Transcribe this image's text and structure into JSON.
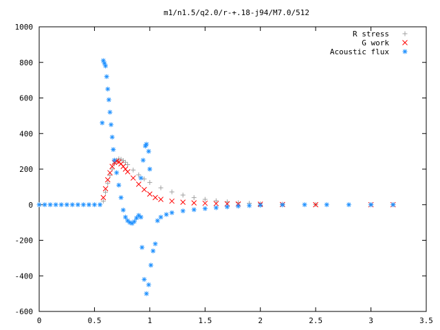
{
  "chart_data": {
    "type": "scatter",
    "title": "m1/n1.5/q2.0/r-+.18-j94/M7.0/512",
    "xlabel": "",
    "ylabel": "",
    "xlim": [
      0,
      3.5
    ],
    "ylim": [
      -600,
      1000
    ],
    "x_ticks": [
      "0",
      "0.5",
      "1",
      "1.5",
      "2",
      "2.5",
      "3",
      "3.5"
    ],
    "y_ticks": [
      "-600",
      "-400",
      "-200",
      "0",
      "200",
      "400",
      "600",
      "800",
      "1000"
    ],
    "grid": false,
    "legend_position": "top-right",
    "series": [
      {
        "name": "R stress",
        "marker": "+",
        "color": "#a0a0a0",
        "points": [
          [
            0.58,
            20
          ],
          [
            0.6,
            70
          ],
          [
            0.62,
            120
          ],
          [
            0.64,
            165
          ],
          [
            0.66,
            200
          ],
          [
            0.68,
            230
          ],
          [
            0.7,
            250
          ],
          [
            0.72,
            258
          ],
          [
            0.74,
            255
          ],
          [
            0.76,
            248
          ],
          [
            0.78,
            238
          ],
          [
            0.8,
            225
          ],
          [
            0.85,
            195
          ],
          [
            0.9,
            168
          ],
          [
            0.95,
            145
          ],
          [
            1.0,
            125
          ],
          [
            1.1,
            95
          ],
          [
            1.2,
            72
          ],
          [
            1.3,
            54
          ],
          [
            1.4,
            40
          ],
          [
            1.5,
            30
          ],
          [
            1.6,
            22
          ],
          [
            1.7,
            16
          ],
          [
            1.8,
            11
          ],
          [
            1.9,
            8
          ],
          [
            2.0,
            5
          ],
          [
            2.2,
            3
          ],
          [
            2.5,
            1
          ],
          [
            3.0,
            0
          ],
          [
            3.2,
            0
          ]
        ]
      },
      {
        "name": "G work",
        "marker": "x",
        "color": "#ff0000",
        "points": [
          [
            0.58,
            40
          ],
          [
            0.6,
            90
          ],
          [
            0.62,
            140
          ],
          [
            0.64,
            180
          ],
          [
            0.66,
            215
          ],
          [
            0.68,
            238
          ],
          [
            0.7,
            245
          ],
          [
            0.72,
            240
          ],
          [
            0.74,
            230
          ],
          [
            0.76,
            215
          ],
          [
            0.78,
            200
          ],
          [
            0.8,
            185
          ],
          [
            0.85,
            150
          ],
          [
            0.9,
            115
          ],
          [
            0.95,
            85
          ],
          [
            1.0,
            60
          ],
          [
            1.05,
            40
          ],
          [
            1.1,
            30
          ],
          [
            1.2,
            20
          ],
          [
            1.3,
            14
          ],
          [
            1.4,
            10
          ],
          [
            1.5,
            8
          ],
          [
            1.6,
            6
          ],
          [
            1.7,
            5
          ],
          [
            1.8,
            4
          ],
          [
            2.0,
            3
          ],
          [
            2.2,
            1
          ],
          [
            2.5,
            0
          ],
          [
            3.0,
            0
          ],
          [
            3.2,
            0
          ]
        ]
      },
      {
        "name": "Acoustic flux",
        "marker": "*",
        "color": "#1e90ff",
        "points": [
          [
            0,
            0
          ],
          [
            0.05,
            0
          ],
          [
            0.1,
            0
          ],
          [
            0.15,
            0
          ],
          [
            0.2,
            0
          ],
          [
            0.25,
            0
          ],
          [
            0.3,
            0
          ],
          [
            0.35,
            0
          ],
          [
            0.4,
            0
          ],
          [
            0.45,
            0
          ],
          [
            0.5,
            0
          ],
          [
            0.55,
            0
          ],
          [
            0.57,
            460
          ],
          [
            0.58,
            810
          ],
          [
            0.59,
            795
          ],
          [
            0.6,
            780
          ],
          [
            0.61,
            720
          ],
          [
            0.62,
            650
          ],
          [
            0.63,
            590
          ],
          [
            0.64,
            520
          ],
          [
            0.65,
            450
          ],
          [
            0.66,
            380
          ],
          [
            0.67,
            310
          ],
          [
            0.68,
            250
          ],
          [
            0.7,
            180
          ],
          [
            0.72,
            110
          ],
          [
            0.74,
            40
          ],
          [
            0.76,
            -30
          ],
          [
            0.78,
            -70
          ],
          [
            0.8,
            -90
          ],
          [
            0.82,
            -100
          ],
          [
            0.84,
            -105
          ],
          [
            0.86,
            -95
          ],
          [
            0.88,
            -75
          ],
          [
            0.9,
            -60
          ],
          [
            0.92,
            -70
          ],
          [
            0.92,
            150
          ],
          [
            0.94,
            250
          ],
          [
            0.96,
            330
          ],
          [
            0.97,
            340
          ],
          [
            0.99,
            300
          ],
          [
            1.0,
            200
          ],
          [
            0.93,
            -240
          ],
          [
            0.95,
            -420
          ],
          [
            0.97,
            -500
          ],
          [
            0.99,
            -450
          ],
          [
            1.01,
            -340
          ],
          [
            1.03,
            -260
          ],
          [
            1.05,
            -220
          ],
          [
            1.07,
            -90
          ],
          [
            1.1,
            -70
          ],
          [
            1.15,
            -55
          ],
          [
            1.2,
            -45
          ],
          [
            1.3,
            -35
          ],
          [
            1.4,
            -28
          ],
          [
            1.5,
            -22
          ],
          [
            1.6,
            -17
          ],
          [
            1.7,
            -12
          ],
          [
            1.8,
            -8
          ],
          [
            1.9,
            -5
          ],
          [
            2.0,
            -3
          ],
          [
            2.2,
            -1
          ],
          [
            2.4,
            0
          ],
          [
            2.6,
            0
          ],
          [
            2.8,
            0
          ],
          [
            3.0,
            0
          ],
          [
            3.2,
            0
          ]
        ]
      }
    ]
  }
}
